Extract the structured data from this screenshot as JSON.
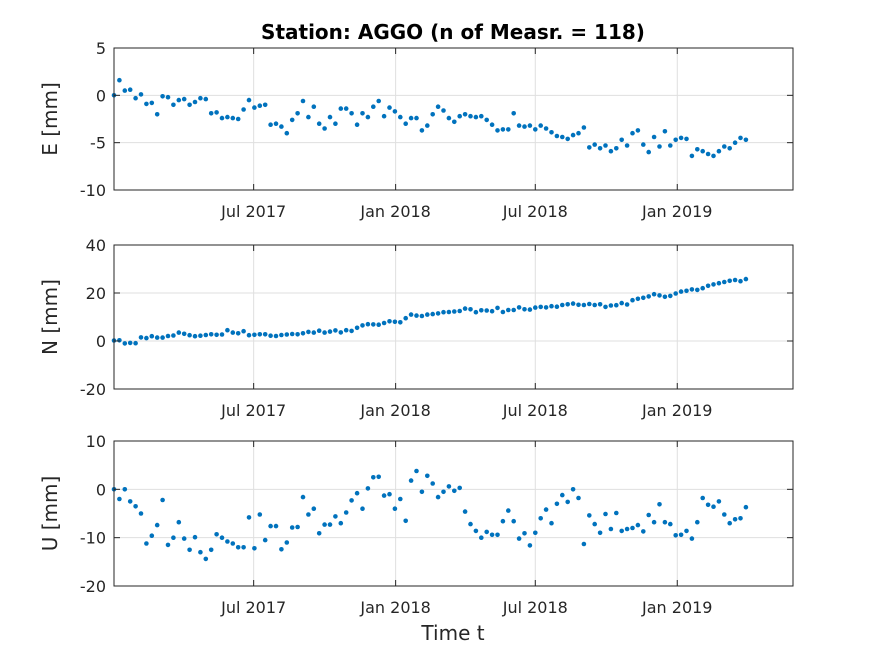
{
  "chart_data": {
    "type": "scatter",
    "title": "Station: AGGO (n of Measr. = 118)",
    "xlabel": "Time t",
    "x_range": [
      "2017-01-01",
      "2019-05-31"
    ],
    "x_ticks": [
      {
        "date": "2017-07-01",
        "label": "Jul 2017"
      },
      {
        "date": "2018-01-01",
        "label": "Jan 2018"
      },
      {
        "date": "2018-07-01",
        "label": "Jul 2018"
      },
      {
        "date": "2019-01-01",
        "label": "Jan 2019"
      }
    ],
    "marker_color": "#0072bd",
    "grid": true,
    "dates": [
      "2017-01-01",
      "2017-01-08",
      "2017-01-15",
      "2017-01-22",
      "2017-01-29",
      "2017-02-05",
      "2017-02-12",
      "2017-02-19",
      "2017-02-26",
      "2017-03-05",
      "2017-03-12",
      "2017-03-19",
      "2017-03-26",
      "2017-04-02",
      "2017-04-09",
      "2017-04-16",
      "2017-04-23",
      "2017-04-30",
      "2017-05-07",
      "2017-05-14",
      "2017-05-21",
      "2017-05-28",
      "2017-06-04",
      "2017-06-11",
      "2017-06-18",
      "2017-06-25",
      "2017-07-02",
      "2017-07-09",
      "2017-07-16",
      "2017-07-23",
      "2017-07-30",
      "2017-08-06",
      "2017-08-13",
      "2017-08-20",
      "2017-08-27",
      "2017-09-03",
      "2017-09-10",
      "2017-09-17",
      "2017-09-24",
      "2017-10-01",
      "2017-10-08",
      "2017-10-15",
      "2017-10-22",
      "2017-10-29",
      "2017-11-05",
      "2017-11-12",
      "2017-11-19",
      "2017-11-26",
      "2017-12-03",
      "2017-12-10",
      "2017-12-17",
      "2017-12-24",
      "2017-12-31",
      "2018-01-07",
      "2018-01-14",
      "2018-01-21",
      "2018-01-28",
      "2018-02-04",
      "2018-02-11",
      "2018-02-18",
      "2018-02-25",
      "2018-03-04",
      "2018-03-11",
      "2018-03-18",
      "2018-03-25",
      "2018-04-01",
      "2018-04-08",
      "2018-04-15",
      "2018-04-22",
      "2018-04-29",
      "2018-05-06",
      "2018-05-13",
      "2018-05-20",
      "2018-05-27",
      "2018-06-03",
      "2018-06-10",
      "2018-06-17",
      "2018-06-24",
      "2018-07-01",
      "2018-07-08",
      "2018-07-15",
      "2018-07-22",
      "2018-07-29",
      "2018-08-05",
      "2018-08-12",
      "2018-08-19",
      "2018-08-26",
      "2018-09-02",
      "2018-09-09",
      "2018-09-16",
      "2018-09-23",
      "2018-09-30",
      "2018-10-07",
      "2018-10-14",
      "2018-10-21",
      "2018-10-28",
      "2018-11-04",
      "2018-11-11",
      "2018-11-18",
      "2018-11-25",
      "2018-12-02",
      "2018-12-09",
      "2018-12-16",
      "2018-12-23",
      "2018-12-30",
      "2019-01-06",
      "2019-01-13",
      "2019-01-20",
      "2019-01-27",
      "2019-02-03",
      "2019-02-10",
      "2019-02-17",
      "2019-02-24",
      "2019-03-03",
      "2019-03-10",
      "2019-03-17",
      "2019-03-24",
      "2019-03-31"
    ],
    "series": [
      {
        "ylabel": "E [mm]",
        "ylim": [
          -10,
          5
        ],
        "yticks": [
          -10,
          -5,
          0,
          5
        ],
        "values": [
          0.0,
          1.6,
          0.5,
          0.6,
          -0.3,
          0.1,
          -0.9,
          -0.8,
          -2.0,
          -0.1,
          -0.2,
          -1.0,
          -0.5,
          -0.4,
          -1.0,
          -0.7,
          -0.3,
          -0.4,
          -1.9,
          -1.8,
          -2.4,
          -2.3,
          -2.4,
          -2.5,
          -1.5,
          -0.5,
          -1.3,
          -1.1,
          -1.0,
          -3.1,
          -3.0,
          -3.3,
          -4.0,
          -2.6,
          -1.9,
          -0.6,
          -2.3,
          -1.2,
          -3.0,
          -3.5,
          -2.3,
          -3.0,
          -1.4,
          -1.4,
          -1.9,
          -3.1,
          -1.9,
          -2.3,
          -1.2,
          -0.6,
          -2.2,
          -1.3,
          -1.7,
          -2.3,
          -3.0,
          -2.4,
          -2.4,
          -3.7,
          -3.2,
          -2.0,
          -1.2,
          -1.6,
          -2.4,
          -2.8,
          -2.2,
          -2.0,
          -2.2,
          -2.3,
          -2.2,
          -2.6,
          -3.1,
          -3.7,
          -3.6,
          -3.6,
          -1.9,
          -3.2,
          -3.3,
          -3.2,
          -3.6,
          -3.2,
          -3.5,
          -3.9,
          -4.3,
          -4.4,
          -4.6,
          -4.2,
          -4.0,
          -3.4,
          -5.5,
          -5.2,
          -5.6,
          -5.3,
          -5.9,
          -5.6,
          -4.7,
          -5.3,
          -4.0,
          -3.7,
          -5.2,
          -6.0,
          -4.4,
          -5.4,
          -3.8,
          -5.3,
          -4.7,
          -4.5,
          -4.6,
          -6.4,
          -5.7,
          -5.9,
          -6.2,
          -6.4,
          -5.9,
          -5.4,
          -5.6,
          -5.0,
          -4.5,
          -4.7
        ]
      },
      {
        "ylabel": "N [mm]",
        "ylim": [
          -20,
          40
        ],
        "yticks": [
          -20,
          0,
          20,
          40
        ],
        "values": [
          0.2,
          0.3,
          -1.0,
          -0.8,
          -0.9,
          1.5,
          1.2,
          2.0,
          1.4,
          1.4,
          2.1,
          2.3,
          3.5,
          3.0,
          2.4,
          2.0,
          2.2,
          2.5,
          2.8,
          2.6,
          2.7,
          4.5,
          3.5,
          3.2,
          4.1,
          2.4,
          2.6,
          2.8,
          2.8,
          2.2,
          2.1,
          2.5,
          2.7,
          2.9,
          2.8,
          3.2,
          3.8,
          3.5,
          4.3,
          3.5,
          3.9,
          4.4,
          3.6,
          4.5,
          4.2,
          5.5,
          6.5,
          7.0,
          6.9,
          6.8,
          7.5,
          8.2,
          8.0,
          7.8,
          9.5,
          11.0,
          10.6,
          10.4,
          11.0,
          11.2,
          11.5,
          12.0,
          12.1,
          12.3,
          12.5,
          13.5,
          13.2,
          12.0,
          12.8,
          12.7,
          12.4,
          13.8,
          12.1,
          12.9,
          12.9,
          14.0,
          13.2,
          13.1,
          13.9,
          14.2,
          14.0,
          14.5,
          14.3,
          15.0,
          15.3,
          15.6,
          15.1,
          15.0,
          15.4,
          15.0,
          15.3,
          14.2,
          14.8,
          14.9,
          15.8,
          15.2,
          17.0,
          17.6,
          18.0,
          18.6,
          19.5,
          19.0,
          18.4,
          18.8,
          19.8,
          20.6,
          20.9,
          21.5,
          21.3,
          22.0,
          23.0,
          23.6,
          24.1,
          24.6,
          25.1,
          25.4,
          24.9,
          25.8
        ]
      },
      {
        "ylabel": "U [mm]",
        "ylim": [
          -20,
          10
        ],
        "yticks": [
          -20,
          -10,
          0,
          10
        ],
        "values": [
          0.0,
          -2.0,
          0.0,
          -2.5,
          -3.5,
          -5.0,
          -11.2,
          -9.6,
          -7.4,
          -2.2,
          -11.5,
          -10.0,
          -6.8,
          -10.2,
          -12.5,
          -9.9,
          -13.0,
          -14.4,
          -12.5,
          -9.3,
          -10.0,
          -10.8,
          -11.2,
          -12.0,
          -12.0,
          -5.8,
          -12.2,
          -5.2,
          -10.5,
          -7.6,
          -7.6,
          -12.4,
          -11.0,
          -7.9,
          -7.8,
          -1.6,
          -5.2,
          -4.0,
          -9.1,
          -7.3,
          -7.3,
          -5.6,
          -7.0,
          -4.8,
          -2.3,
          -0.8,
          -4.0,
          0.2,
          2.5,
          2.6,
          -1.3,
          -1.0,
          -4.0,
          -2.0,
          -6.5,
          1.8,
          3.8,
          -0.5,
          2.8,
          1.2,
          -1.6,
          -0.5,
          0.6,
          -0.3,
          0.3,
          -4.6,
          -7.2,
          -8.6,
          -10.0,
          -8.8,
          -9.4,
          -9.4,
          -6.6,
          -4.4,
          -6.6,
          -10.2,
          -9.1,
          -11.6,
          -9.0,
          -6.0,
          -4.2,
          -7.0,
          -3.0,
          -1.2,
          -2.6,
          0.0,
          -1.8,
          -11.3,
          -5.4,
          -7.2,
          -9.0,
          -5.1,
          -8.2,
          -4.9,
          -8.6,
          -8.2,
          -8.0,
          -7.4,
          -8.7,
          -5.3,
          -6.8,
          -3.1,
          -6.8,
          -7.2,
          -9.5,
          -9.4,
          -8.6,
          -10.2,
          -6.8,
          -1.8,
          -3.2,
          -3.6,
          -2.5,
          -5.2,
          -7.0,
          -6.2,
          -6.0,
          -3.7
        ]
      }
    ]
  }
}
